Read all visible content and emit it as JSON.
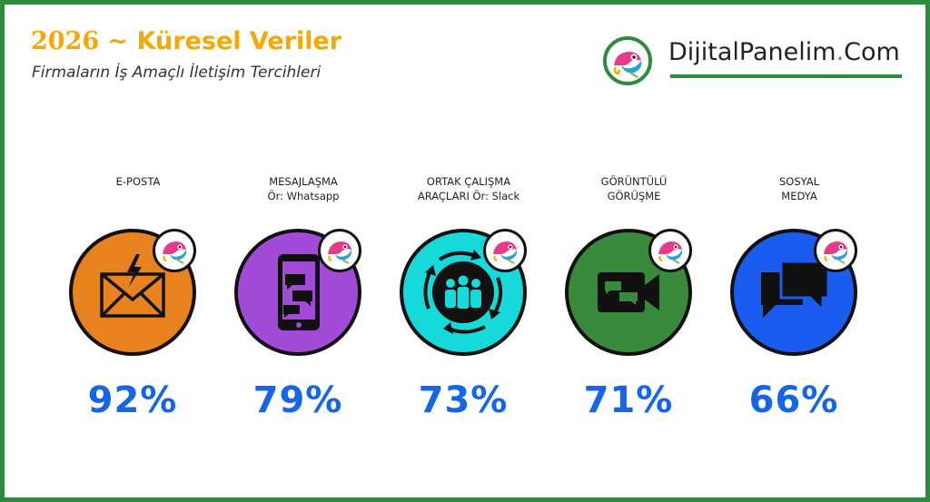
{
  "header": {
    "year": "2026",
    "title_rest": " ~ Küresel Veriler",
    "subtitle": "Firmaların İş Amaçlı İletişim Tercihleri"
  },
  "brand": {
    "name_main": "DijitalPanelim",
    "dot": ".",
    "name_tld": "Com"
  },
  "colors": {
    "frame": "#2e8b3e",
    "title": "#f5a800",
    "percent": "#1565e8",
    "email": "#e8821e",
    "messaging": "#a24bd8",
    "collab": "#16d9d9",
    "video": "#3a8a3e",
    "social": "#1a5cf0"
  },
  "chart_data": {
    "type": "bar",
    "title": "Firmaların İş Amaçlı İletişim Tercihleri",
    "categories": [
      "E-POSTA",
      "MESAJLAŞMA Ör: Whatsapp",
      "ORTAK ÇALIŞMA ARAÇLARI Ör: Slack",
      "GÖRÜNTÜLÜ GÖRÜŞME",
      "SOSYAL MEDYA"
    ],
    "values": [
      92,
      79,
      73,
      71,
      66
    ],
    "unit": "%",
    "ylim": [
      0,
      100
    ]
  },
  "items": [
    {
      "label": "E-POSTA",
      "percent": "92%",
      "icon": "envelope-icon",
      "color": "#e8821e"
    },
    {
      "label": "MESAJLAŞMA\nÖr: Whatsapp",
      "percent": "79%",
      "icon": "smartphone-chat-icon",
      "color": "#a24bd8"
    },
    {
      "label": "ORTAK ÇALIŞMA\nARAÇLARI Ör: Slack",
      "percent": "73%",
      "icon": "team-collaboration-icon",
      "color": "#16d9d9"
    },
    {
      "label": "GÖRÜNTÜLÜ\nGÖRÜŞME",
      "percent": "71%",
      "icon": "video-call-icon",
      "color": "#3a8a3e"
    },
    {
      "label": "SOSYAL\nMEDYA",
      "percent": "66%",
      "icon": "speech-bubbles-icon",
      "color": "#1a5cf0"
    }
  ]
}
